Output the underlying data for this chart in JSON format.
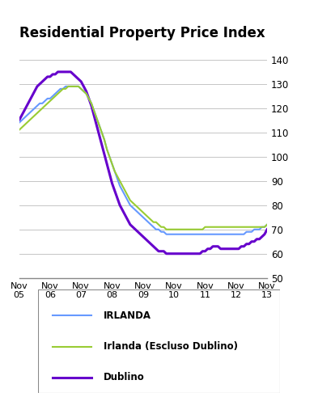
{
  "title": "Residential Property Price Index",
  "title_fontsize": 12,
  "ylim": [
    50,
    145
  ],
  "yticks": [
    50,
    60,
    70,
    80,
    90,
    100,
    110,
    120,
    130,
    140
  ],
  "xtick_labels": [
    "Nov\n05",
    "Nov\n06",
    "Nov\n07",
    "Nov\n08",
    "Nov\n09",
    "Nov\n10",
    "Nov\n11",
    "Nov\n12",
    "Nov\n13"
  ],
  "colors": {
    "irlanda": "#6699FF",
    "escluso": "#99CC33",
    "dublino": "#6600CC"
  },
  "legend_labels": [
    "IRLANDA",
    "Irlanda (Escluso Dublino)",
    "Dublino"
  ],
  "irlanda": [
    114,
    115,
    116,
    117,
    118,
    119,
    120,
    121,
    122,
    122,
    123,
    124,
    124,
    125,
    126,
    127,
    128,
    128,
    129,
    129,
    129,
    129,
    129,
    129,
    128,
    127,
    126,
    124,
    122,
    119,
    116,
    113,
    110,
    107,
    103,
    100,
    97,
    94,
    91,
    88,
    86,
    84,
    82,
    80,
    79,
    78,
    77,
    76,
    75,
    74,
    73,
    72,
    71,
    70,
    70,
    69,
    69,
    68,
    68,
    68,
    68,
    68,
    68,
    68,
    68,
    68,
    68,
    68,
    68,
    68,
    68,
    68,
    68,
    68,
    68,
    68,
    68,
    68,
    68,
    68,
    68,
    68,
    68,
    68,
    68,
    68,
    68,
    68,
    69,
    69,
    69,
    70,
    70,
    70,
    71,
    71,
    72
  ],
  "escluso": [
    111,
    112,
    113,
    114,
    115,
    116,
    117,
    118,
    119,
    120,
    121,
    122,
    123,
    124,
    125,
    126,
    127,
    128,
    128,
    129,
    129,
    129,
    129,
    129,
    128,
    127,
    126,
    124,
    122,
    119,
    116,
    113,
    110,
    107,
    103,
    100,
    97,
    94,
    92,
    90,
    88,
    86,
    84,
    82,
    81,
    80,
    79,
    78,
    77,
    76,
    75,
    74,
    73,
    73,
    72,
    71,
    71,
    70,
    70,
    70,
    70,
    70,
    70,
    70,
    70,
    70,
    70,
    70,
    70,
    70,
    70,
    70,
    71,
    71,
    71,
    71,
    71,
    71,
    71,
    71,
    71,
    71,
    71,
    71,
    71,
    71,
    71,
    71,
    71,
    71,
    71,
    71,
    71,
    71,
    71,
    71,
    72
  ],
  "dublino": [
    115,
    117,
    119,
    121,
    123,
    125,
    127,
    129,
    130,
    131,
    132,
    133,
    133,
    134,
    134,
    135,
    135,
    135,
    135,
    135,
    135,
    134,
    133,
    132,
    131,
    129,
    127,
    124,
    121,
    117,
    113,
    109,
    105,
    101,
    97,
    93,
    89,
    86,
    83,
    80,
    78,
    76,
    74,
    72,
    71,
    70,
    69,
    68,
    67,
    66,
    65,
    64,
    63,
    62,
    61,
    61,
    61,
    60,
    60,
    60,
    60,
    60,
    60,
    60,
    60,
    60,
    60,
    60,
    60,
    60,
    60,
    61,
    61,
    62,
    62,
    63,
    63,
    63,
    62,
    62,
    62,
    62,
    62,
    62,
    62,
    62,
    63,
    63,
    64,
    64,
    65,
    65,
    66,
    66,
    67,
    68,
    70
  ]
}
